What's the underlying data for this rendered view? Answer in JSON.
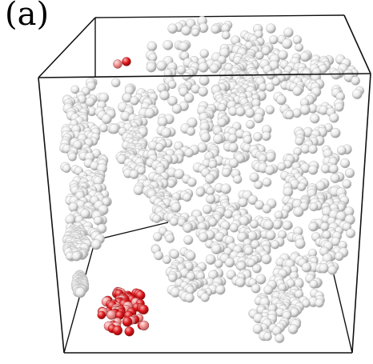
{
  "figure": {
    "panel_label": "(a)"
  },
  "colors": {
    "background": "#ffffff",
    "box_edge": "#111111",
    "particle_gray": "#e8e8e8",
    "particle_gray_shade": "#9a9a9a",
    "particle_red": "#e0161a",
    "particle_red_light": "#f2a0a0"
  }
}
